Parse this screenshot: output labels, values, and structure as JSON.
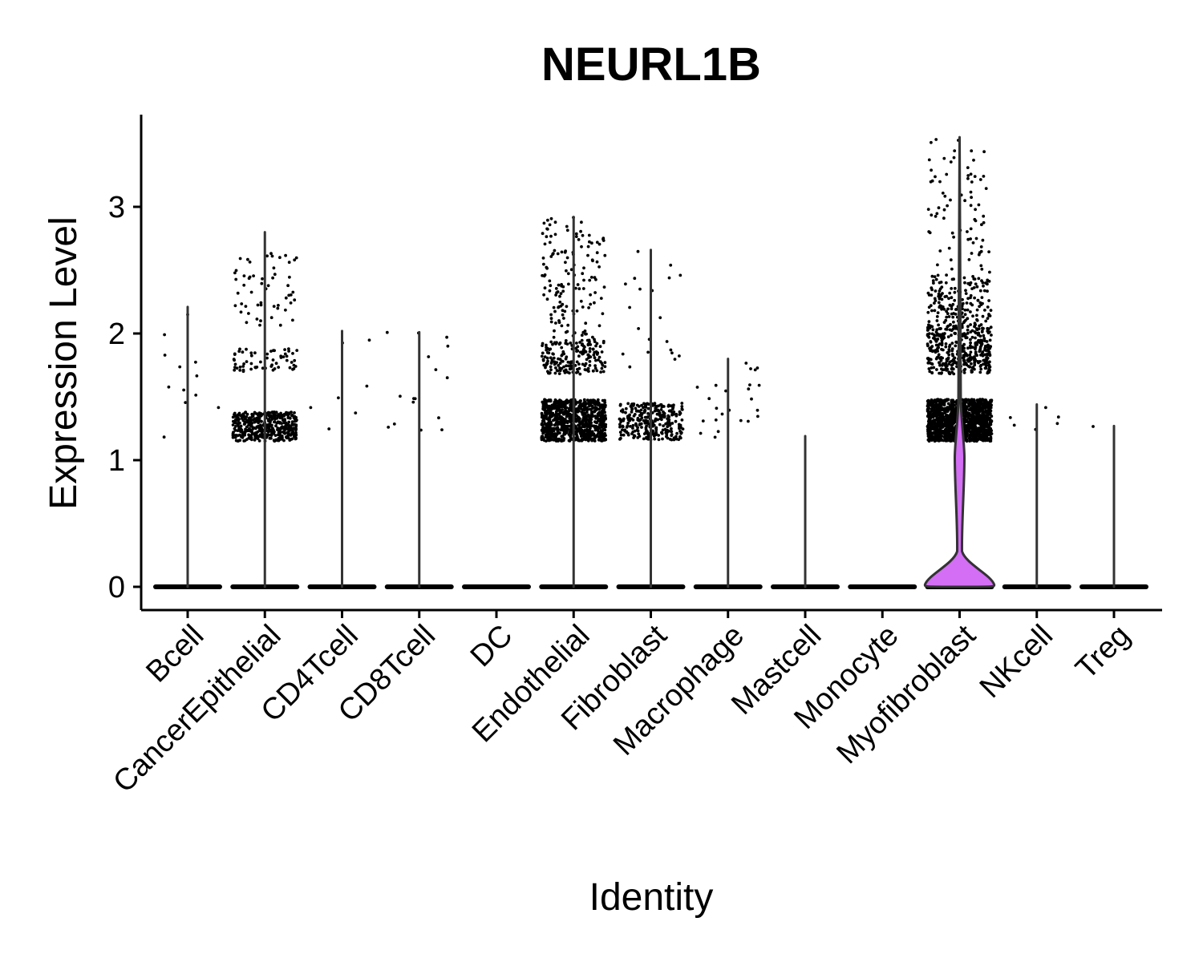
{
  "chart_data": {
    "type": "violin",
    "title": "NEURL1B",
    "xlabel": "Identity",
    "ylabel": "Expression Level",
    "ylim": [
      -0.18,
      3.75
    ],
    "yticks": [
      0,
      1,
      2,
      3
    ],
    "grid": false,
    "legend": "none",
    "violin_color": "#333333",
    "highlight_color": "#d46ef5",
    "groups": [
      {
        "name": "Bcell",
        "max": 2.21,
        "fill": "#ffffff",
        "clusters": [
          {
            "n": 12,
            "lo": 1.13,
            "hi": 2.21
          }
        ]
      },
      {
        "name": "CancerEpithelial",
        "max": 2.8,
        "fill": "#ffffff",
        "clusters": [
          {
            "n": 420,
            "lo": 1.15,
            "hi": 1.38
          },
          {
            "n": 60,
            "lo": 1.7,
            "hi": 1.88
          },
          {
            "n": 55,
            "lo": 2.05,
            "hi": 2.65
          }
        ]
      },
      {
        "name": "CD4Tcell",
        "max": 2.02,
        "fill": "#ffffff",
        "clusters": [
          {
            "n": 7,
            "lo": 1.23,
            "hi": 2.02
          }
        ]
      },
      {
        "name": "CD8Tcell",
        "max": 2.01,
        "fill": "#ffffff",
        "clusters": [
          {
            "n": 16,
            "lo": 1.22,
            "hi": 2.01
          }
        ]
      },
      {
        "name": "DC",
        "max": 0,
        "fill": "#ffffff",
        "clusters": []
      },
      {
        "name": "Endothelial",
        "max": 2.92,
        "fill": "#ffffff",
        "clusters": [
          {
            "n": 850,
            "lo": 1.15,
            "hi": 1.48
          },
          {
            "n": 180,
            "lo": 1.68,
            "hi": 1.95
          },
          {
            "n": 140,
            "lo": 1.95,
            "hi": 2.92
          }
        ]
      },
      {
        "name": "Fibroblast",
        "max": 2.66,
        "fill": "#ffffff",
        "clusters": [
          {
            "n": 300,
            "lo": 1.16,
            "hi": 1.45
          },
          {
            "n": 20,
            "lo": 1.55,
            "hi": 2.66
          }
        ]
      },
      {
        "name": "Macrophage",
        "max": 1.8,
        "fill": "#ffffff",
        "clusters": [
          {
            "n": 24,
            "lo": 1.18,
            "hi": 1.8
          }
        ]
      },
      {
        "name": "Mastcell",
        "max": 1.19,
        "fill": "#ffffff",
        "clusters": []
      },
      {
        "name": "Monocyte",
        "max": 0,
        "fill": "#ffffff",
        "clusters": []
      },
      {
        "name": "Myofibroblast",
        "max": 3.55,
        "fill": "#d46ef5",
        "clusters": [
          {
            "n": 1300,
            "lo": 1.15,
            "hi": 1.48
          },
          {
            "n": 380,
            "lo": 1.68,
            "hi": 2.05
          },
          {
            "n": 170,
            "lo": 2.05,
            "hi": 2.45
          },
          {
            "n": 80,
            "lo": 2.45,
            "hi": 3.55
          }
        ]
      },
      {
        "name": "NKcell",
        "max": 1.44,
        "fill": "#ffffff",
        "clusters": [
          {
            "n": 6,
            "lo": 1.21,
            "hi": 1.44
          }
        ]
      },
      {
        "name": "Treg",
        "max": 1.27,
        "fill": "#ffffff",
        "clusters": [
          {
            "n": 1,
            "lo": 1.26,
            "hi": 1.27
          }
        ]
      }
    ]
  }
}
